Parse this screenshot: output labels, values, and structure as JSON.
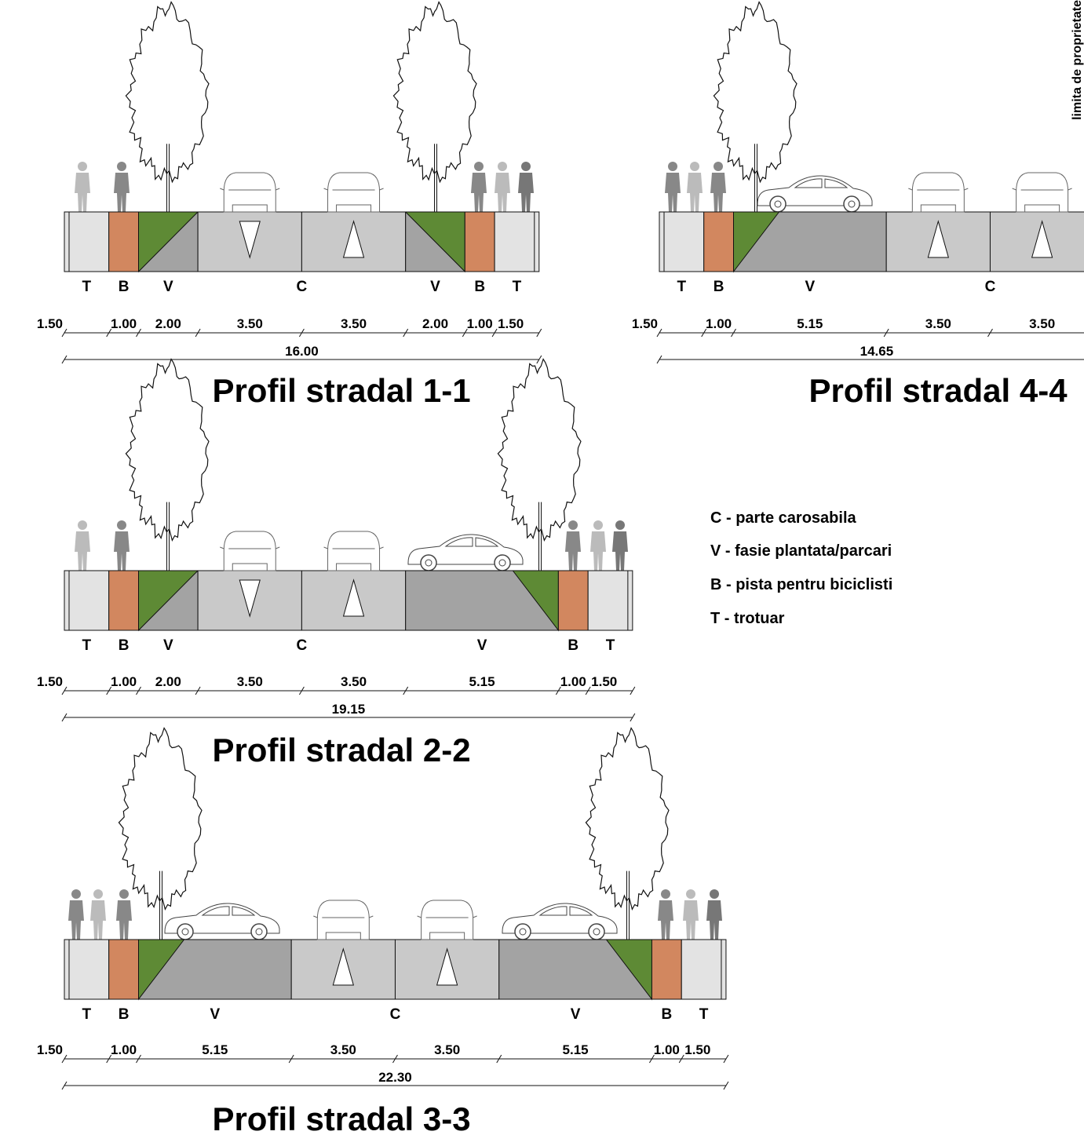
{
  "profiles": [
    {
      "title": "Profil stradal 1-1",
      "zones": [
        "T",
        "B",
        "V",
        "C",
        "V",
        "B",
        "T"
      ],
      "dimensions": [
        "1.50",
        "1.00",
        "2.00",
        "3.50",
        "3.50",
        "2.00",
        "1.00",
        "1.50"
      ],
      "total": "16.00"
    },
    {
      "title": "Profil stradal 2-2",
      "zones": [
        "T",
        "B",
        "V",
        "C",
        "V",
        "B",
        "T"
      ],
      "dimensions": [
        "1.50",
        "1.00",
        "2.00",
        "3.50",
        "3.50",
        "5.15",
        "1.00",
        "1.50"
      ],
      "total": "19.15"
    },
    {
      "title": "Profil stradal 3-3",
      "zones": [
        "T",
        "B",
        "V",
        "C",
        "V",
        "B",
        "T"
      ],
      "dimensions": [
        "1.50",
        "1.00",
        "5.15",
        "3.50",
        "3.50",
        "5.15",
        "1.00",
        "1.50"
      ],
      "total": "22.30"
    },
    {
      "title": "Profil stradal 4-4",
      "zones": [
        "T",
        "B",
        "V",
        "C"
      ],
      "dimensions": [
        "1.50",
        "1.00",
        "5.15",
        "3.50",
        "3.50"
      ],
      "total": "14.65"
    }
  ],
  "legend": [
    "C - parte carosabila",
    "V - fasie plantata/parcari",
    "B - pista pentru biciclisti",
    "T - trotuar"
  ],
  "property_limit": "limita de proprietate"
}
